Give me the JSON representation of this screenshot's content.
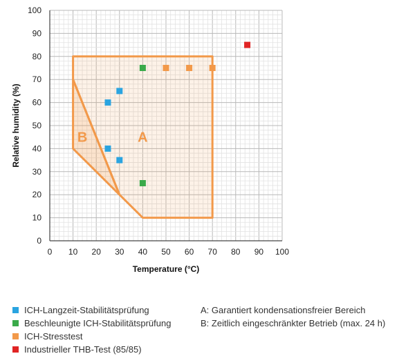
{
  "chart_data": {
    "type": "scatter",
    "xlabel": "Temperature (°C)",
    "ylabel": "Relative humidity (%)",
    "xlim": [
      0,
      100
    ],
    "ylim": [
      0,
      100
    ],
    "xticks": [
      0,
      10,
      20,
      30,
      40,
      50,
      60,
      70,
      80,
      90,
      100
    ],
    "yticks": [
      0,
      10,
      20,
      30,
      40,
      50,
      60,
      70,
      80,
      90,
      100
    ],
    "grid": true,
    "series": [
      {
        "name": "ICH-Langzeit-Stabilitätsprüfung",
        "color": "#2aa4e0",
        "x": [
          25,
          30,
          25,
          30
        ],
        "y": [
          60,
          65,
          40,
          35
        ]
      },
      {
        "name": "Beschleunigte ICH-Stabilitätsprüfung",
        "color": "#3aaa4a",
        "x": [
          40,
          40
        ],
        "y": [
          75,
          25
        ]
      },
      {
        "name": "ICH-Stresstest",
        "color": "#f2994a",
        "x": [
          50,
          60,
          70
        ],
        "y": [
          75,
          75,
          75
        ]
      },
      {
        "name": "Industrieller THB-Test (85/85)",
        "color": "#e02424",
        "x": [
          85
        ],
        "y": [
          85
        ]
      }
    ],
    "regions": [
      {
        "label": "A",
        "color": "#f2994a",
        "x": [
          10,
          70,
          70,
          40,
          30,
          10
        ],
        "y": [
          80,
          80,
          10,
          10,
          20,
          70
        ],
        "label_at": [
          40,
          45
        ]
      },
      {
        "label": "B",
        "color": "#f2994a",
        "x": [
          10,
          30,
          10
        ],
        "y": [
          70,
          20,
          40
        ],
        "label_at": [
          14,
          45
        ]
      }
    ]
  },
  "legend_notes": [
    "A: Garantiert kondensationsfreier Bereich",
    "B: Zeitlich eingeschränkter Betrieb (max. 24 h)"
  ]
}
